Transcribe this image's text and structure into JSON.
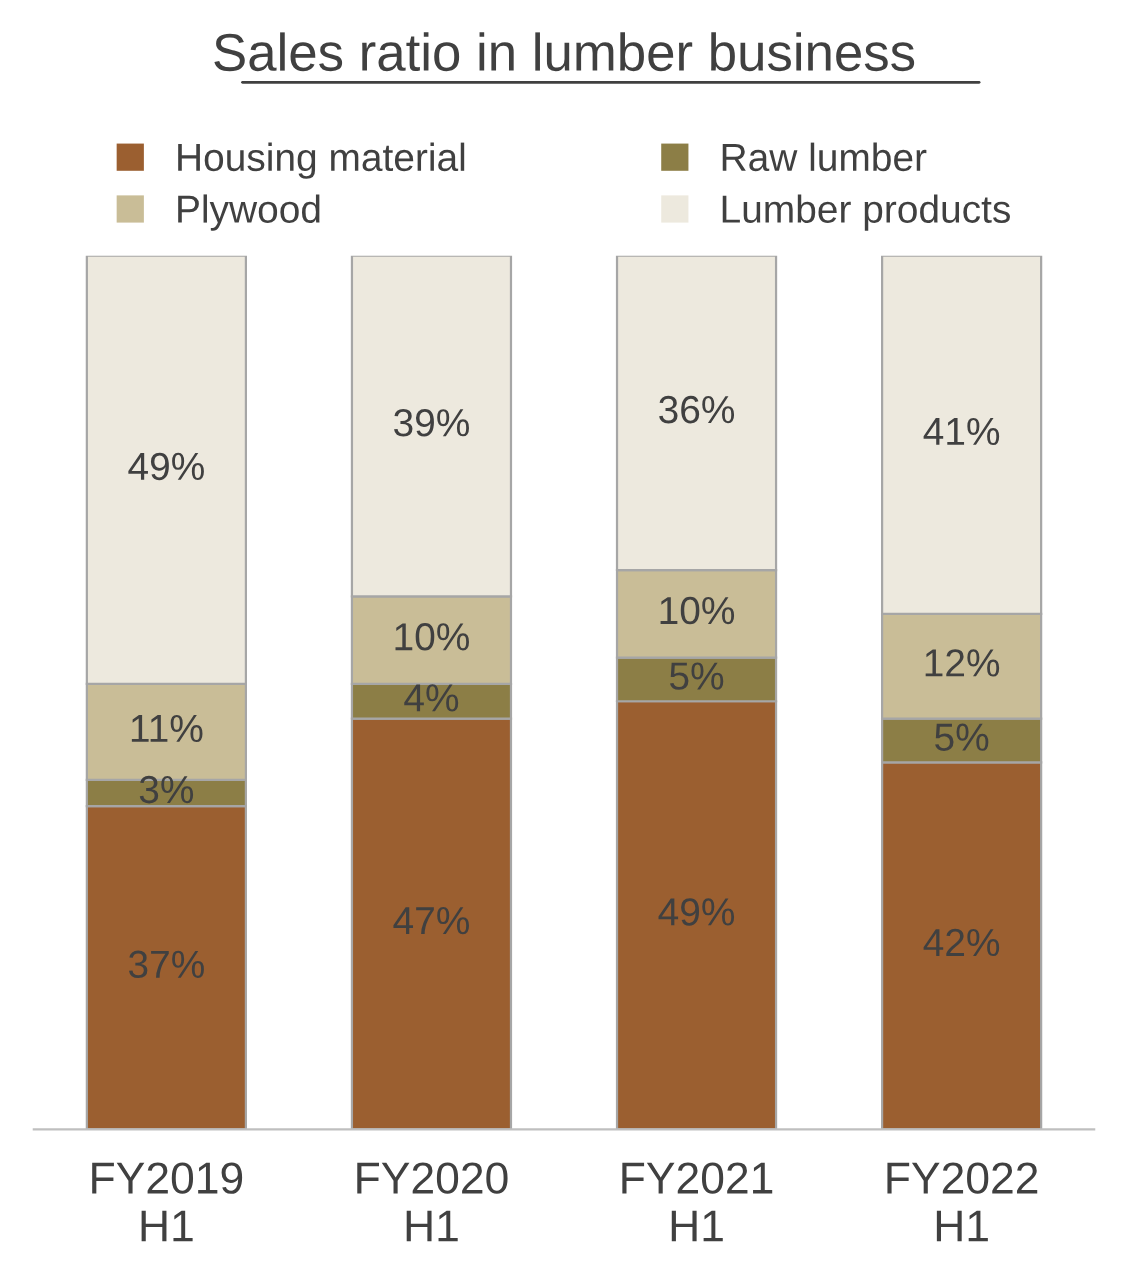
{
  "chart_data": {
    "type": "bar",
    "title": "Sales ratio in lumber business",
    "categories": [
      "FY2019\nH1",
      "FY2020\nH1",
      "FY2021\nH1",
      "FY2022\nH1"
    ],
    "stacked": true,
    "ylim": [
      0,
      100
    ],
    "tick_labels": "x",
    "legend": "top",
    "grid": false,
    "series": [
      {
        "name": "Housing material",
        "color": "#9b5f30",
        "values": [
          37,
          47,
          49,
          42
        ],
        "value_labels": [
          "37%",
          "47%",
          "49%",
          "42%"
        ]
      },
      {
        "name": "Raw lumber",
        "color": "#8c7e46",
        "values": [
          3,
          4,
          5,
          5
        ],
        "value_labels": [
          "3%",
          "4%",
          "5%",
          "5%"
        ]
      },
      {
        "name": "Plywood",
        "color": "#c9bd97",
        "values": [
          11,
          10,
          10,
          12
        ],
        "value_labels": [
          "11%",
          "10%",
          "10%",
          "12%"
        ]
      },
      {
        "name": "Lumber products",
        "color": "#ede9de",
        "values": [
          49,
          39,
          36,
          41
        ],
        "value_labels": [
          "49%",
          "39%",
          "36%",
          "41%"
        ]
      }
    ]
  }
}
